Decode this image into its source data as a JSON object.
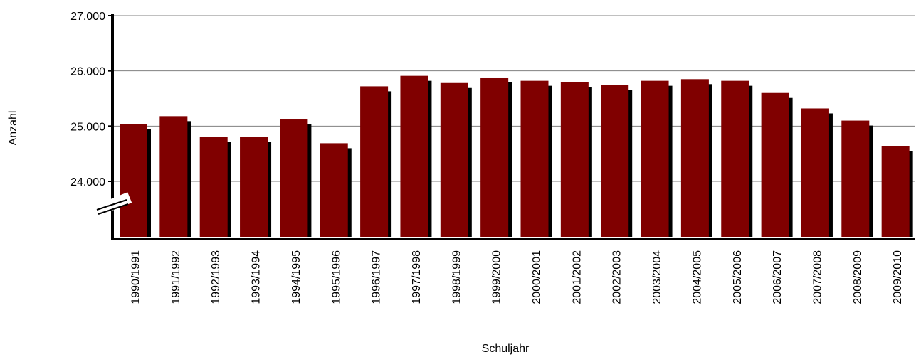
{
  "chart_data": {
    "type": "bar",
    "title": "",
    "xlabel": "Schuljahr",
    "ylabel": "Anzahl",
    "ylim": [
      23000,
      27000
    ],
    "yticks": [
      24000,
      25000,
      26000,
      27000
    ],
    "ytick_labels": [
      "24.000",
      "25.000",
      "26.000",
      "27.000"
    ],
    "axis_break": true,
    "grid": true,
    "legend": "none",
    "colors": {
      "bar": "#800000",
      "shadow": "#000000",
      "grid": "#808080",
      "axis": "#000000"
    },
    "categories": [
      "1990/1991",
      "1991/1992",
      "1992/1993",
      "1993/1994",
      "1994/1995",
      "1995/1996",
      "1996/1997",
      "1997/1998",
      "1998/1999",
      "1999/2000",
      "2000/2001",
      "2001/2002",
      "2002/2003",
      "2003/2004",
      "2004/2005",
      "2005/2006",
      "2006/2007",
      "2007/2008",
      "2008/2009",
      "2009/2010"
    ],
    "values": [
      25030,
      25180,
      24810,
      24800,
      25120,
      24690,
      25720,
      25910,
      25780,
      25880,
      25820,
      25790,
      25750,
      25820,
      25850,
      25820,
      25600,
      25320,
      25100,
      24640
    ]
  }
}
